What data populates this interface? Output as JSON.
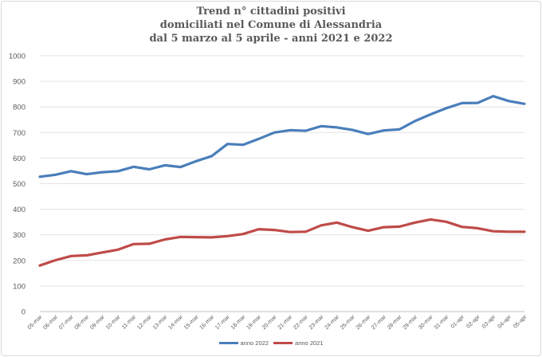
{
  "chart_data": {
    "type": "line",
    "title_lines": [
      "Trend n° cittadini positivi",
      "domiciliati nel Comune di Alessandria",
      "dal 5 marzo al 5 aprile - anni 2021 e 2022"
    ],
    "xlabel": "",
    "ylabel": "",
    "ylim": [
      0,
      1000
    ],
    "yticks": [
      0,
      100,
      200,
      300,
      400,
      500,
      600,
      700,
      800,
      900,
      1000
    ],
    "grid": true,
    "legend_position": "bottom",
    "categories": [
      "05-mar",
      "06-mar",
      "07-mar",
      "08-mar",
      "09-mar",
      "10-mar",
      "11-mar",
      "12-mar",
      "13-mar",
      "14-mar",
      "15-mar",
      "16-mar",
      "17-mar",
      "18-mar",
      "19-mar",
      "20-mar",
      "21-mar",
      "22-mar",
      "23-mar",
      "24-mar",
      "25-mar",
      "26-mar",
      "27-mar",
      "28-mar",
      "29-mar",
      "30-mar",
      "31-mar",
      "01-apr",
      "02-apr",
      "03-apr",
      "04-apr",
      "05-apr"
    ],
    "series": [
      {
        "name": "anno 2022",
        "color": "#4a7ebb",
        "values": [
          527,
          535,
          549,
          537,
          545,
          549,
          566,
          556,
          572,
          565,
          588,
          608,
          655,
          652,
          675,
          700,
          709,
          707,
          725,
          720,
          710,
          694,
          708,
          712,
          745,
          771,
          795,
          815,
          816,
          842,
          823,
          812
        ]
      },
      {
        "name": "anno 2021",
        "color": "#be4b48",
        "values": [
          180,
          201,
          217,
          220,
          231,
          242,
          264,
          265,
          282,
          292,
          291,
          290,
          295,
          303,
          322,
          319,
          311,
          312,
          337,
          348,
          330,
          316,
          330,
          332,
          348,
          360,
          351,
          331,
          326,
          314,
          312,
          312
        ]
      }
    ]
  }
}
